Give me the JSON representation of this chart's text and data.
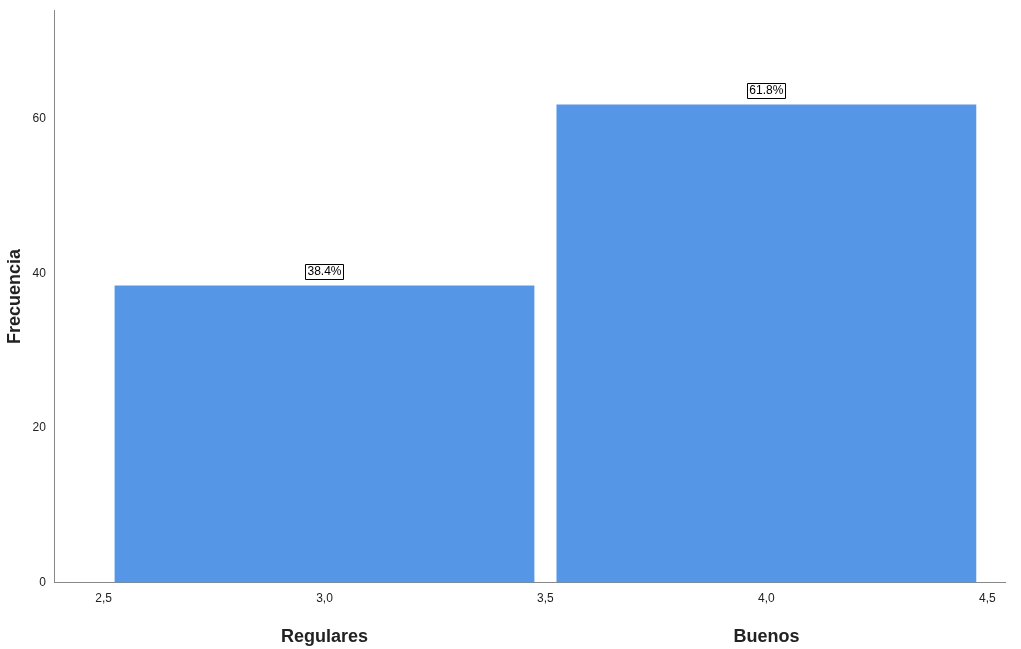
{
  "chart_data": {
    "type": "histogram",
    "ylabel": "Frecuencia",
    "bins": [
      2.5,
      3.5,
      4.5
    ],
    "values": [
      38.4,
      61.8
    ],
    "color": "#5596e6",
    "value_labels": [
      "38.4%",
      "61.8%"
    ],
    "xlim": [
      2.39,
      4.54
    ],
    "xticks": [
      {
        "value": 2.5,
        "label": "2,5"
      },
      {
        "value": 3,
        "label": "3,0"
      },
      {
        "value": 3.5,
        "label": "3,5"
      },
      {
        "value": 4,
        "label": "4,0"
      },
      {
        "value": 4.5,
        "label": "4,5"
      }
    ],
    "ylim": [
      0,
      74
    ],
    "yticks": [
      0,
      20,
      40,
      60
    ],
    "grid": false,
    "legend": false,
    "annotations": [
      "Regulares",
      "Buenos"
    ]
  }
}
